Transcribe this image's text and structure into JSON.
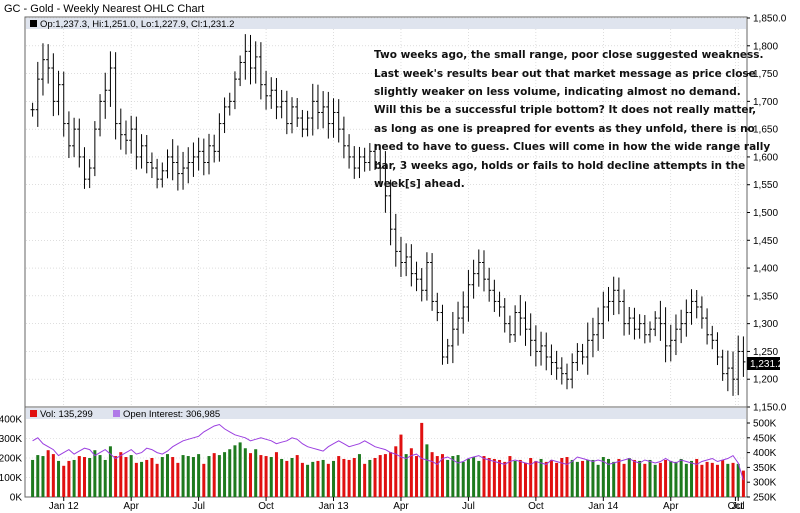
{
  "header": {
    "title": "GC - Gold - Weekly Nearest OHLC Chart"
  },
  "legend": {
    "price": "Op:1,237.3, Hi:1,251.0, Lo:1,227.9, Cl:1,231.2",
    "volume": "Vol: 135,299",
    "open_interest": "Open Interest: 306,985"
  },
  "annotation": [
    "Two weeks ago, the small range, poor close suggested weakness.",
    "Last week's results bear out that market message  as price close",
    "slightly weaker on less volume, indicating almost no demand.",
    "Will this be a successful triple bottom?  It does not really matter,",
    "as long as one is preapred for events as they unfold, there is no",
    "need to have to guess.  Clues will come in how the wide range rally",
    "bar, 3 weeks ago, holds or fails to hold decline attempts in the",
    "week[s] ahead."
  ],
  "last_price_label": "1,231.2",
  "colors": {
    "up": "#1e7a1e",
    "down": "#e01010",
    "open_interest": "#9b3fe0",
    "ohlc": "#000000",
    "header_bg": "#dfe4ee",
    "grid": "#c9c9c9"
  },
  "chart_data": [
    {
      "type": "ohlc",
      "title": "GC - Gold - Weekly Nearest OHLC Chart",
      "y_ticks": [
        "1,150.0",
        "1,200",
        "1,250",
        "1,300",
        "1,350",
        "1,400",
        "1,450",
        "1,500",
        "1,550",
        "1,600",
        "1,650",
        "1,700",
        "1,750",
        "1,800",
        "1,850.0"
      ],
      "ylim": [
        1150,
        1850
      ],
      "x_ticks": [
        "Jan 12",
        "Apr",
        "Jul",
        "Oct",
        "Jan 13",
        "Apr",
        "Jul",
        "Oct",
        "Jan 14",
        "Apr",
        "Jul",
        "Oct"
      ],
      "grid": true,
      "close": [
        1685,
        1740,
        1775,
        1760,
        1700,
        1730,
        1660,
        1620,
        1650,
        1600,
        1560,
        1580,
        1650,
        1700,
        1720,
        1760,
        1660,
        1640,
        1630,
        1650,
        1600,
        1620,
        1590,
        1580,
        1560,
        1575,
        1600,
        1590,
        1570,
        1580,
        1590,
        1600,
        1610,
        1590,
        1620,
        1610,
        1660,
        1690,
        1700,
        1740,
        1770,
        1790,
        1760,
        1780,
        1730,
        1710,
        1720,
        1690,
        1700,
        1660,
        1690,
        1670,
        1650,
        1670,
        1700,
        1680,
        1690,
        1660,
        1680,
        1650,
        1620,
        1600,
        1580,
        1600,
        1590,
        1610,
        1590,
        1580,
        1530,
        1470,
        1430,
        1410,
        1420,
        1390,
        1380,
        1360,
        1410,
        1340,
        1320,
        1240,
        1260,
        1290,
        1310,
        1330,
        1370,
        1390,
        1410,
        1380,
        1360,
        1340,
        1330,
        1300,
        1280,
        1320,
        1310,
        1290,
        1270,
        1250,
        1260,
        1240,
        1230,
        1220,
        1210,
        1200,
        1230,
        1250,
        1240,
        1270,
        1280,
        1300,
        1330,
        1340,
        1360,
        1340,
        1300,
        1310,
        1290,
        1300,
        1280,
        1290,
        1310,
        1300,
        1260,
        1270,
        1290,
        1300,
        1320,
        1340,
        1330,
        1310,
        1280,
        1270,
        1240,
        1210,
        1220,
        1200,
        1250,
        1231.2
      ],
      "volume": [
        190,
        215,
        210,
        240,
        220,
        185,
        160,
        185,
        190,
        210,
        205,
        200,
        240,
        215,
        190,
        260,
        210,
        230,
        205,
        215,
        175,
        180,
        190,
        200,
        170,
        205,
        220,
        205,
        175,
        215,
        210,
        205,
        220,
        170,
        210,
        225,
        215,
        230,
        245,
        265,
        280,
        250,
        225,
        245,
        215,
        210,
        205,
        230,
        195,
        185,
        200,
        215,
        175,
        165,
        180,
        185,
        190,
        170,
        185,
        210,
        195,
        190,
        200,
        220,
        170,
        190,
        200,
        215,
        220,
        230,
        260,
        320,
        220,
        250,
        210,
        380,
        270,
        230,
        210,
        220,
        190,
        210,
        215,
        180,
        195,
        205,
        185,
        210,
        200,
        195,
        190,
        180,
        210,
        185,
        190,
        175,
        200,
        185,
        195,
        180,
        190,
        175,
        200,
        205,
        190,
        180,
        185,
        190,
        190,
        165,
        205,
        195,
        180,
        195,
        170,
        200,
        190,
        185,
        170,
        190,
        165,
        175,
        190,
        185,
        180,
        195,
        170,
        185,
        195,
        165,
        180,
        175,
        165,
        190,
        170,
        175,
        170,
        135.3
      ],
      "open_interest": [
        440,
        450,
        430,
        420,
        410,
        390,
        400,
        410,
        395,
        405,
        415,
        410,
        390,
        400,
        410,
        395,
        380,
        390,
        400,
        410,
        395,
        400,
        415,
        410,
        400,
        395,
        405,
        420,
        430,
        440,
        445,
        450,
        455,
        470,
        480,
        490,
        495,
        480,
        470,
        460,
        455,
        450,
        440,
        445,
        450,
        445,
        440,
        430,
        435,
        440,
        450,
        445,
        430,
        420,
        415,
        410,
        405,
        420,
        430,
        440,
        430,
        420,
        425,
        430,
        440,
        430,
        420,
        415,
        410,
        400,
        395,
        385,
        380,
        390,
        395,
        380,
        375,
        370,
        360,
        380,
        385,
        375,
        365,
        370,
        380,
        385,
        390,
        380,
        375,
        370,
        365,
        360,
        370,
        375,
        370,
        365,
        360,
        370,
        365,
        360,
        375,
        370,
        365,
        360,
        370,
        385,
        380,
        375,
        370,
        375,
        370,
        360,
        365,
        370,
        375,
        380,
        370,
        365,
        375,
        370,
        365,
        370,
        380,
        370,
        365,
        375,
        370,
        365,
        360,
        370,
        375,
        380,
        370,
        375,
        380,
        390,
        365,
        306.985
      ],
      "volume_axis": [
        "0K",
        "100K",
        "200K",
        "300K",
        "400K"
      ],
      "oi_axis": [
        "250K",
        "300K",
        "350K",
        "400K",
        "450K",
        "500K"
      ],
      "note": "Two weeks ago, the small range, poor close suggested weakness."
    }
  ]
}
